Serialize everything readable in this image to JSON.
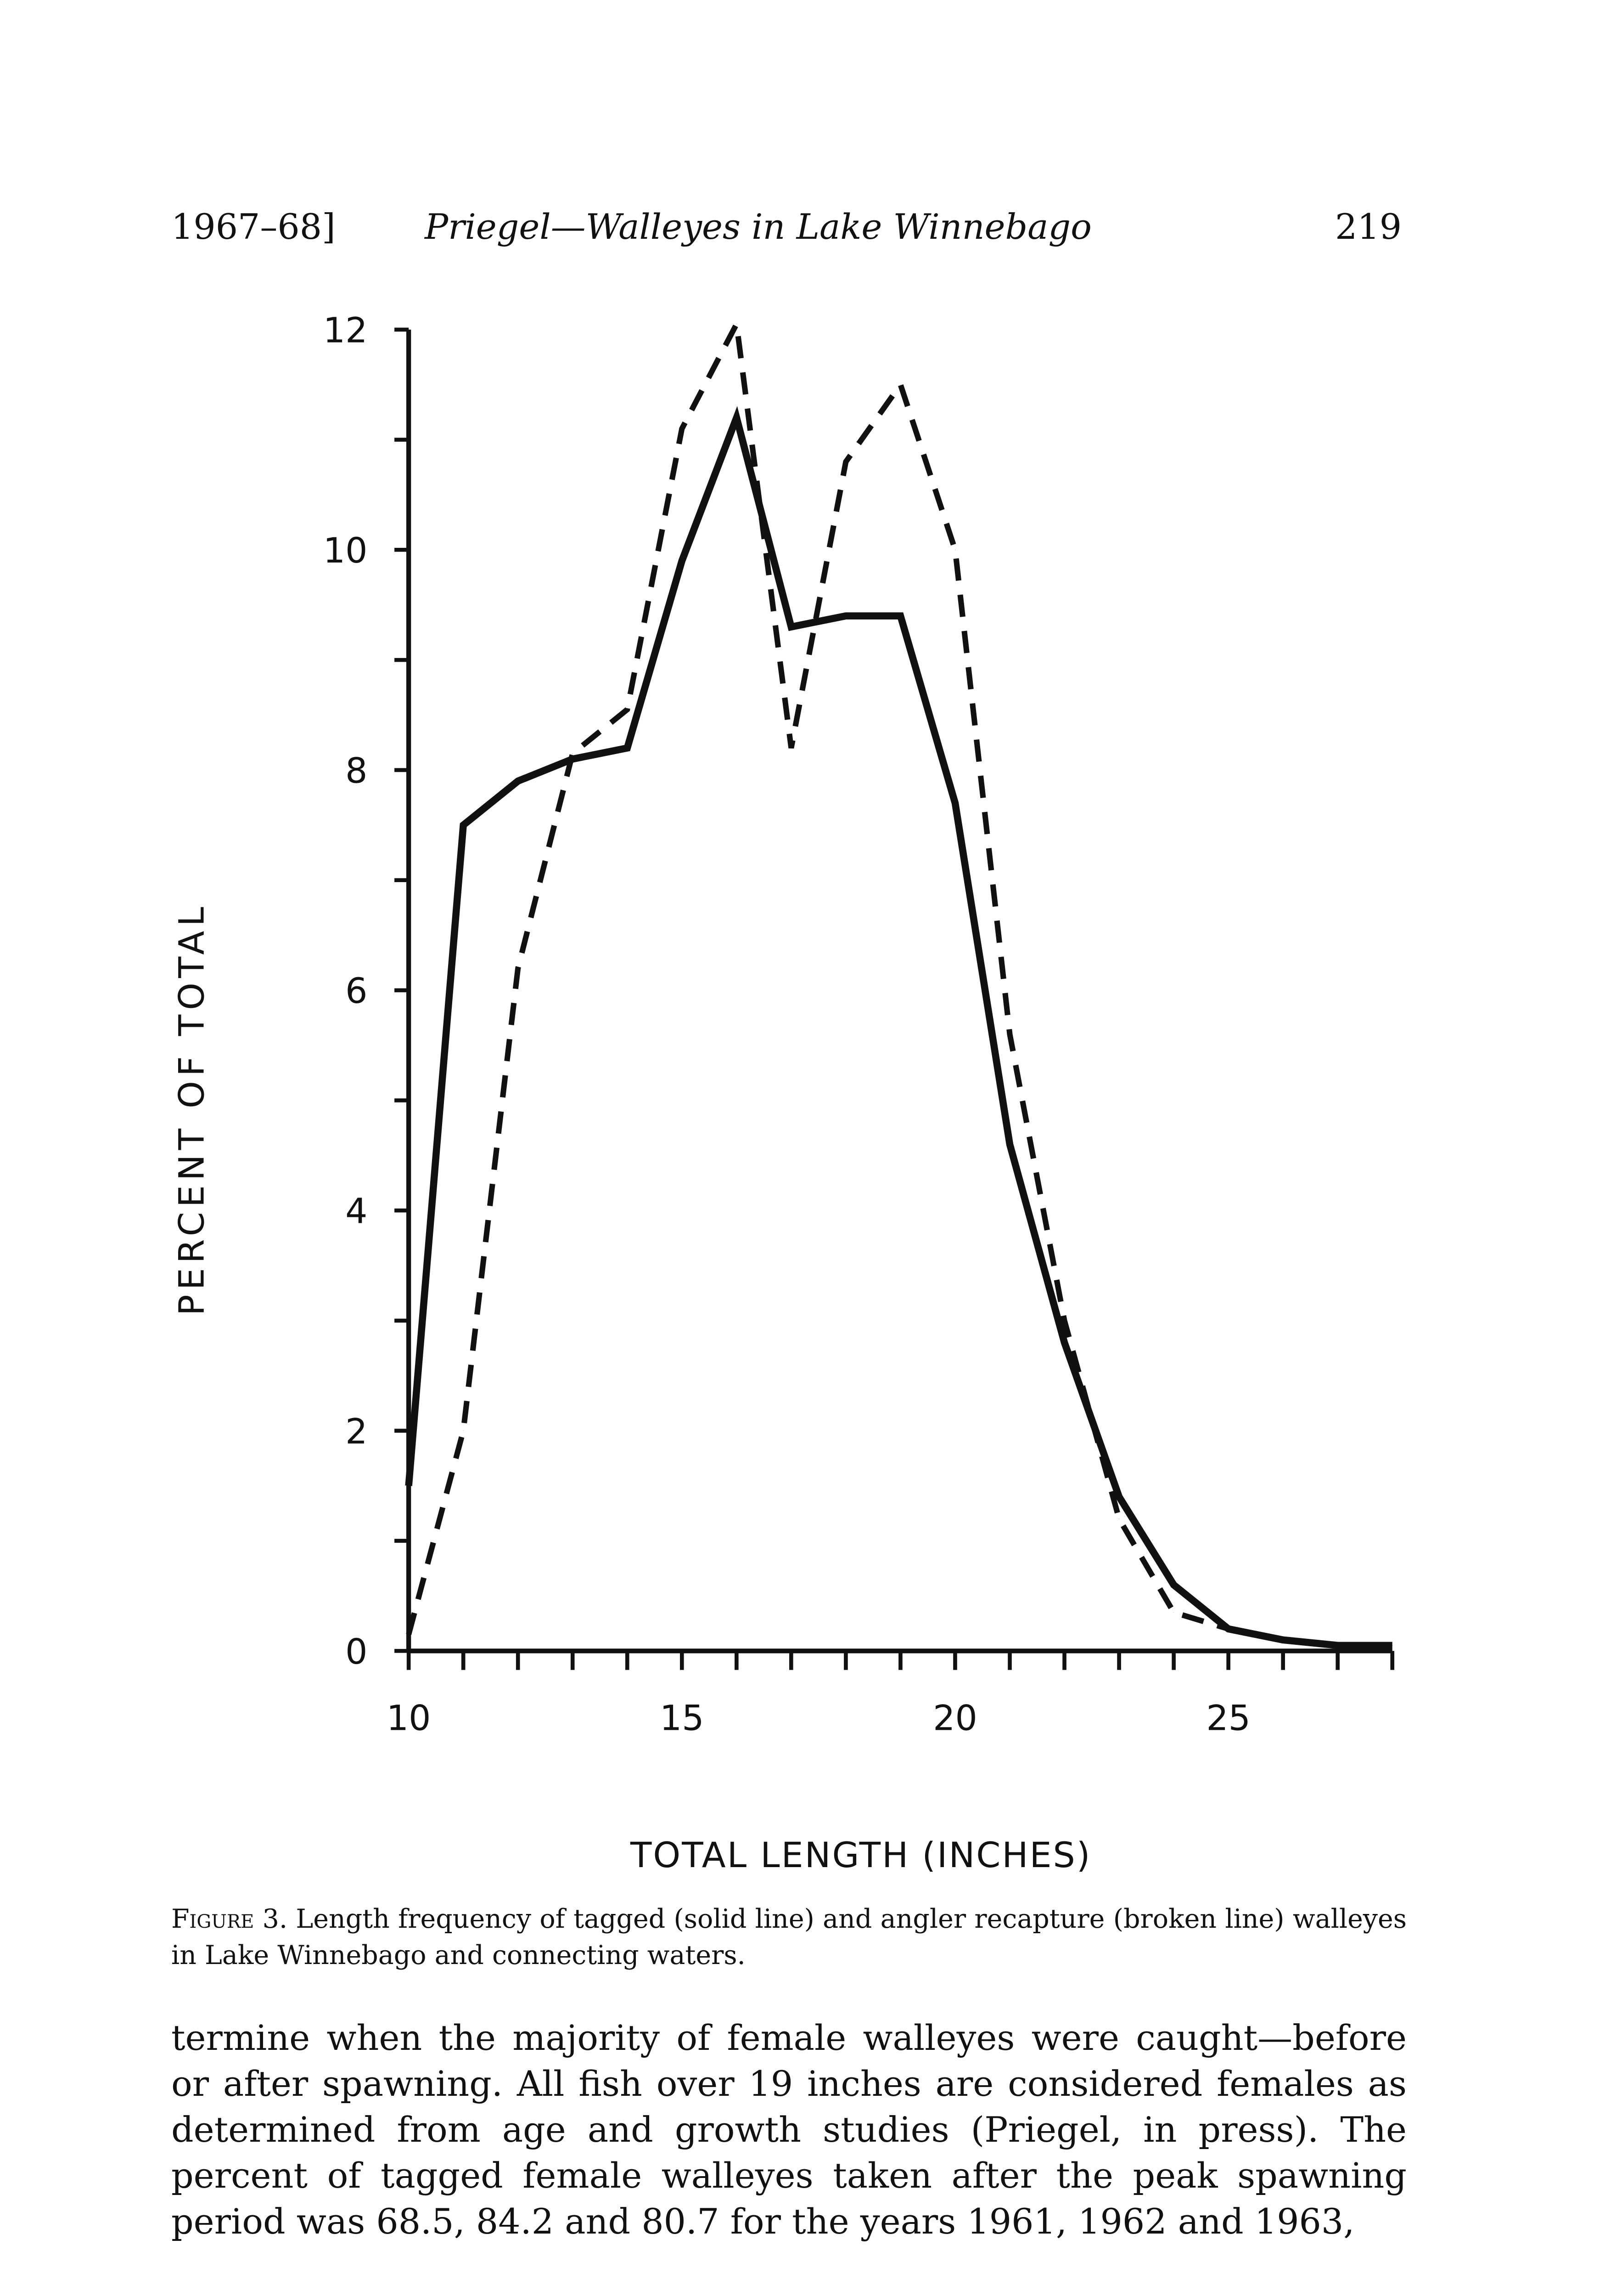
{
  "header": {
    "left": "1967–68]",
    "center": "Priegel—Walleyes in Lake Winnebago",
    "right": "219"
  },
  "chart_data": {
    "type": "line",
    "title": "",
    "xlabel": "TOTAL LENGTH (INCHES)",
    "ylabel": "PERCENT OF TOTAL",
    "xlim": [
      10,
      28
    ],
    "ylim": [
      0,
      12
    ],
    "xticks": [
      "10",
      "15",
      "20",
      "25"
    ],
    "yticks": [
      "0",
      "2",
      "4",
      "6",
      "8",
      "10",
      "12"
    ],
    "x": [
      10,
      11,
      12,
      13,
      14,
      15,
      16,
      17,
      18,
      19,
      20,
      21,
      22,
      23,
      24,
      25,
      26,
      27,
      28
    ],
    "series": [
      {
        "name": "tagged (solid line)",
        "style": "solid",
        "values": [
          1.5,
          7.5,
          7.9,
          8.1,
          8.2,
          9.9,
          11.2,
          9.3,
          9.4,
          9.4,
          7.7,
          4.6,
          2.8,
          1.4,
          0.6,
          0.2,
          0.1,
          0.05,
          0.05
        ]
      },
      {
        "name": "angler recapture (broken line)",
        "style": "dashed",
        "values": [
          0.15,
          2.0,
          6.2,
          8.15,
          8.55,
          11.1,
          12.05,
          8.2,
          10.8,
          11.5,
          10.0,
          5.6,
          3.0,
          1.2,
          0.35,
          0.2,
          0.1,
          0.05,
          0.05
        ]
      }
    ]
  },
  "caption": {
    "figure": "Figure 3.",
    "text": " Length frequency of tagged (solid line) and angler recapture (broken line) walleyes in Lake Winnebago and connecting waters."
  },
  "body": "termine when the majority of female walleyes were caught—before or after spawning. All fish over 19 inches are considered females as determined from age and growth studies (Priegel, in press). The percent of tagged female walleyes taken after the peak spawning period was 68.5, 84.2 and 80.7 for the years 1961, 1962 and 1963,"
}
